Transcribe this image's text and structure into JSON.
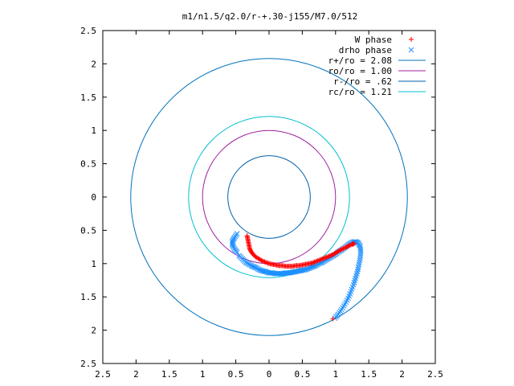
{
  "chart_data": {
    "type": "scatter",
    "title": "m1/n1.5/q2.0/r-+.30-j155/M7.0/512",
    "xlabel": "",
    "ylabel": "",
    "xlim": [
      -2.5,
      2.5
    ],
    "ylim": [
      -2.5,
      2.5
    ],
    "x_ticks": [
      -2.5,
      -2,
      -1.5,
      -1,
      -0.5,
      0,
      0.5,
      1,
      1.5,
      2,
      2.5
    ],
    "y_ticks": [
      -2.5,
      -2,
      -1.5,
      -1,
      -0.5,
      0,
      0.5,
      1,
      1.5,
      2,
      2.5
    ],
    "x_tick_labels": [
      "2.5",
      "2",
      "1.5",
      "1",
      "0.5",
      "0",
      "0.5",
      "1",
      "1.5",
      "2",
      "2.5"
    ],
    "y_tick_labels": [
      "2.5",
      "2",
      "1.5",
      "1",
      "0.5",
      "0",
      "0.5",
      "1",
      "1.5",
      "2",
      "2.5"
    ],
    "grid": false,
    "legend_position": "top-right",
    "circles": [
      {
        "name": "r+/ro = 2.08",
        "radius": 2.08,
        "color": "#0072bd"
      },
      {
        "name": "ro/ro = 1.00",
        "radius": 1.0,
        "color": "#a020a0"
      },
      {
        "name": "r-/ro = .62",
        "radius": 0.62,
        "color": "#0060ad"
      },
      {
        "name": "rc/ro = 1.21",
        "radius": 1.21,
        "color": "#00c0d0"
      }
    ],
    "series": [
      {
        "name": "W phase",
        "marker": "+",
        "color": "#ff0000",
        "points": [
          [
            -0.33,
            -0.58
          ],
          [
            -0.32,
            -0.63
          ],
          [
            -0.31,
            -0.68
          ],
          [
            -0.3,
            -0.73
          ],
          [
            -0.29,
            -0.78
          ],
          [
            -0.27,
            -0.82
          ],
          [
            -0.24,
            -0.86
          ],
          [
            -0.2,
            -0.9
          ],
          [
            -0.15,
            -0.93
          ],
          [
            -0.1,
            -0.96
          ],
          [
            -0.05,
            -0.98
          ],
          [
            0.0,
            -1.0
          ],
          [
            0.05,
            -1.01
          ],
          [
            0.1,
            -1.02
          ],
          [
            0.15,
            -1.03
          ],
          [
            0.2,
            -1.03
          ],
          [
            0.25,
            -1.04
          ],
          [
            0.3,
            -1.04
          ],
          [
            0.35,
            -1.04
          ],
          [
            0.4,
            -1.03
          ],
          [
            0.45,
            -1.03
          ],
          [
            0.5,
            -1.02
          ],
          [
            0.55,
            -1.01
          ],
          [
            0.6,
            -1.0
          ],
          [
            0.65,
            -0.99
          ],
          [
            0.7,
            -0.97
          ],
          [
            0.75,
            -0.95
          ],
          [
            0.8,
            -0.93
          ],
          [
            0.85,
            -0.91
          ],
          [
            0.9,
            -0.89
          ],
          [
            0.95,
            -0.87
          ],
          [
            1.0,
            -0.84
          ],
          [
            1.05,
            -0.81
          ],
          [
            1.1,
            -0.78
          ],
          [
            1.15,
            -0.76
          ],
          [
            1.2,
            -0.73
          ],
          [
            1.25,
            -0.71
          ],
          [
            1.28,
            -0.7
          ],
          [
            0.96,
            -1.83
          ]
        ]
      },
      {
        "name": "drho phase",
        "marker": "x",
        "color": "#1e90ff",
        "points": [
          [
            -0.48,
            -0.83
          ],
          [
            -0.52,
            -0.78
          ],
          [
            -0.55,
            -0.72
          ],
          [
            -0.55,
            -0.66
          ],
          [
            -0.52,
            -0.61
          ],
          [
            -0.48,
            -0.55
          ],
          [
            -0.45,
            -0.88
          ],
          [
            -0.4,
            -0.93
          ],
          [
            -0.35,
            -0.98
          ],
          [
            -0.3,
            -1.01
          ],
          [
            -0.25,
            -1.04
          ],
          [
            -0.2,
            -1.06
          ],
          [
            -0.15,
            -1.09
          ],
          [
            -0.1,
            -1.11
          ],
          [
            -0.05,
            -1.12
          ],
          [
            0.0,
            -1.14
          ],
          [
            0.05,
            -1.14
          ],
          [
            0.1,
            -1.15
          ],
          [
            0.15,
            -1.15
          ],
          [
            0.2,
            -1.15
          ],
          [
            0.25,
            -1.14
          ],
          [
            0.3,
            -1.14
          ],
          [
            0.35,
            -1.13
          ],
          [
            0.4,
            -1.12
          ],
          [
            0.45,
            -1.11
          ],
          [
            0.5,
            -1.1
          ],
          [
            0.55,
            -1.09
          ],
          [
            0.6,
            -1.07
          ],
          [
            0.65,
            -1.05
          ],
          [
            0.7,
            -1.03
          ],
          [
            0.75,
            -1.0
          ],
          [
            0.8,
            -0.98
          ],
          [
            0.85,
            -0.95
          ],
          [
            0.9,
            -0.92
          ],
          [
            0.95,
            -0.89
          ],
          [
            1.0,
            -0.86
          ],
          [
            1.05,
            -0.82
          ],
          [
            1.1,
            -0.79
          ],
          [
            1.15,
            -0.75
          ],
          [
            1.2,
            -0.71
          ],
          [
            1.25,
            -0.68
          ],
          [
            1.3,
            -0.67
          ],
          [
            1.34,
            -0.69
          ],
          [
            1.37,
            -0.74
          ],
          [
            1.38,
            -0.82
          ],
          [
            1.37,
            -0.92
          ],
          [
            1.35,
            -1.02
          ],
          [
            1.33,
            -1.12
          ],
          [
            1.3,
            -1.22
          ],
          [
            1.27,
            -1.32
          ],
          [
            1.23,
            -1.42
          ],
          [
            1.19,
            -1.52
          ],
          [
            1.14,
            -1.61
          ],
          [
            1.09,
            -1.69
          ],
          [
            1.04,
            -1.76
          ],
          [
            0.99,
            -1.82
          ]
        ]
      }
    ]
  }
}
